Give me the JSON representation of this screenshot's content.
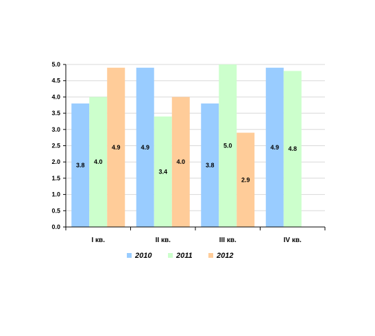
{
  "chart_data": {
    "type": "bar",
    "categories": [
      "I кв.",
      "II кв.",
      "III кв.",
      "IV кв."
    ],
    "series": [
      {
        "name": "2010",
        "color": "#99ccff",
        "values": [
          3.8,
          4.9,
          3.8,
          4.9
        ]
      },
      {
        "name": "2011",
        "color": "#ccffcc",
        "values": [
          4.0,
          3.4,
          5.0,
          4.8
        ]
      },
      {
        "name": "2012",
        "color": "#ffcc99",
        "values": [
          4.9,
          4.0,
          2.9,
          null
        ]
      }
    ],
    "ylim": [
      0,
      5.0
    ],
    "yticks": [
      "0.0",
      "0.5",
      "1.0",
      "1.5",
      "2.0",
      "2.5",
      "3.0",
      "3.5",
      "4.0",
      "4.5",
      "5.0"
    ],
    "grid": true,
    "legend_position": "bottom"
  }
}
